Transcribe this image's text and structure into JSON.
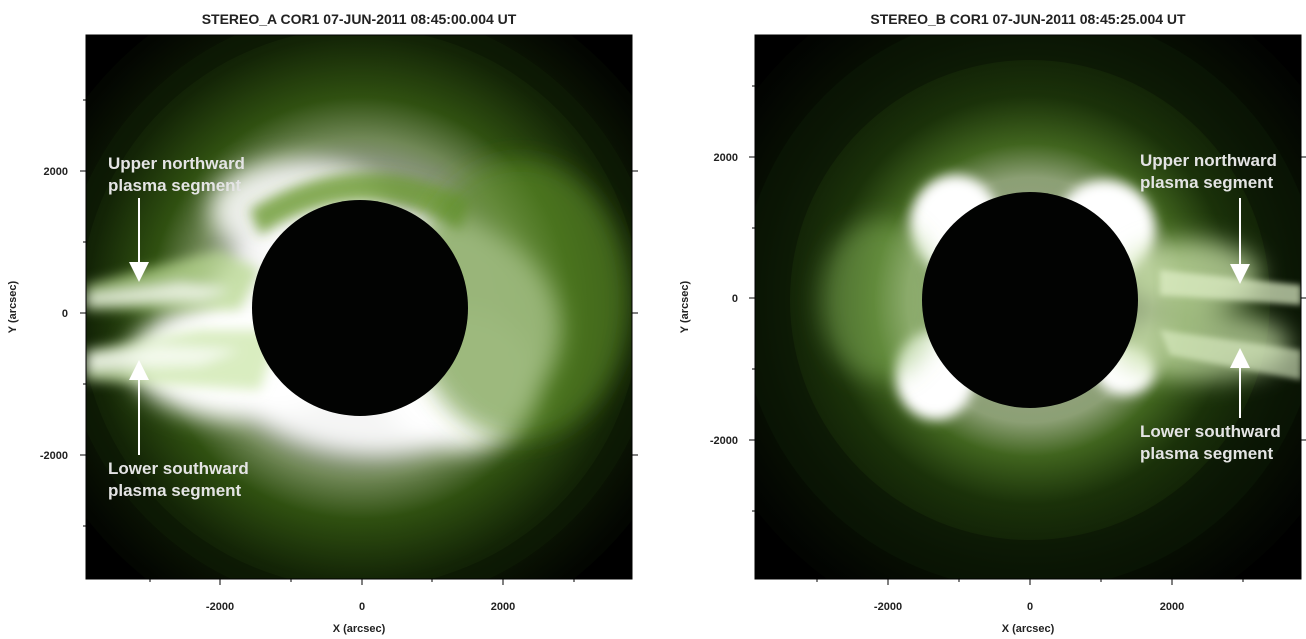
{
  "panels": [
    {
      "title": "STEREO_A COR1 07-JUN-2011 08:45:00.004 UT",
      "xlabel": "X (arcsec)",
      "ylabel": "Y (arcsec)",
      "xticks": [
        "-2000",
        "0",
        "2000"
      ],
      "yticks": [
        "2000",
        "0",
        "-2000"
      ],
      "annotations": [
        {
          "line1": "Upper northward",
          "line2": "plasma segment"
        },
        {
          "line1": "Lower southward",
          "line2": "plasma segment"
        }
      ]
    },
    {
      "title": "STEREO_B COR1 07-JUN-2011 08:45:25.004 UT",
      "xlabel": "X (arcsec)",
      "ylabel": "Y (arcsec)",
      "xticks": [
        "-2000",
        "0",
        "2000"
      ],
      "yticks": [
        "2000",
        "0",
        "-2000"
      ],
      "annotations": [
        {
          "line1": "Upper northward",
          "line2": "plasma segment"
        },
        {
          "line1": "Lower southward",
          "line2": "plasma segment"
        }
      ]
    }
  ],
  "colors": {
    "corona_bright": "#ffffff",
    "corona_green": "#4a7a1a",
    "corona_dark": "#0c1a04",
    "background": "#000000",
    "annotation_text": "#e4e4e4"
  }
}
